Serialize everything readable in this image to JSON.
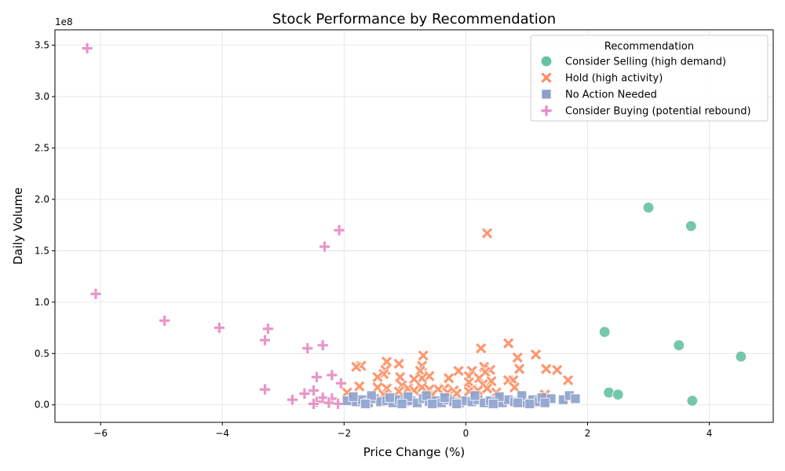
{
  "chart_data": {
    "type": "scatter",
    "title": "Stock Performance by Recommendation",
    "xlabel": "Price Change (%)",
    "ylabel": "Daily Volume",
    "y_offset_label": "1e8",
    "xlim": [
      -6.75,
      5.05
    ],
    "ylim": [
      -0.17,
      3.65
    ],
    "x_ticks": [
      -6,
      -4,
      -2,
      0,
      2,
      4
    ],
    "x_tick_labels": [
      "−6",
      "−4",
      "−2",
      "0",
      "2",
      "4"
    ],
    "y_ticks": [
      0.0,
      0.5,
      1.0,
      1.5,
      2.0,
      2.5,
      3.0,
      3.5
    ],
    "y_tick_labels": [
      "0.0",
      "0.5",
      "1.0",
      "1.5",
      "2.0",
      "2.5",
      "3.0",
      "3.5"
    ],
    "grid": true,
    "legend": {
      "title": "Recommendation",
      "placement": "upper right"
    },
    "series": [
      {
        "name": "Consider Selling (high demand)",
        "marker": "circle",
        "color": "#66c2a5",
        "points": [
          [
            3.0,
            1.92
          ],
          [
            3.7,
            1.74
          ],
          [
            2.28,
            0.71
          ],
          [
            3.5,
            0.58
          ],
          [
            4.52,
            0.47
          ],
          [
            2.35,
            0.12
          ],
          [
            2.5,
            0.1
          ],
          [
            3.72,
            0.04
          ]
        ]
      },
      {
        "name": "Hold (high activity)",
        "marker": "x",
        "color": "#fc8d62",
        "points": [
          [
            0.35,
            1.67
          ],
          [
            0.7,
            0.6
          ],
          [
            0.25,
            0.55
          ],
          [
            1.15,
            0.49
          ],
          [
            -0.7,
            0.48
          ],
          [
            0.85,
            0.46
          ],
          [
            -1.3,
            0.42
          ],
          [
            -1.1,
            0.4
          ],
          [
            -0.72,
            0.38
          ],
          [
            -1.72,
            0.38
          ],
          [
            -1.8,
            0.37
          ],
          [
            0.3,
            0.37
          ],
          [
            0.88,
            0.35
          ],
          [
            1.32,
            0.35
          ],
          [
            1.5,
            0.34
          ],
          [
            -1.32,
            0.34
          ],
          [
            -0.75,
            0.33
          ],
          [
            0.4,
            0.34
          ],
          [
            0.1,
            0.33
          ],
          [
            -0.12,
            0.33
          ],
          [
            0.32,
            0.32
          ],
          [
            -1.35,
            0.3
          ],
          [
            0.05,
            0.28
          ],
          [
            -0.6,
            0.28
          ],
          [
            -1.45,
            0.27
          ],
          [
            -1.08,
            0.27
          ],
          [
            -0.72,
            0.26
          ],
          [
            -0.28,
            0.26
          ],
          [
            0.22,
            0.26
          ],
          [
            -0.85,
            0.25
          ],
          [
            0.7,
            0.24
          ],
          [
            1.68,
            0.24
          ],
          [
            0.78,
            0.24
          ],
          [
            0.42,
            0.23
          ],
          [
            0.05,
            0.22
          ],
          [
            0.28,
            0.2
          ],
          [
            -1.05,
            0.19
          ],
          [
            -1.75,
            0.18
          ],
          [
            -0.72,
            0.17
          ],
          [
            -1.45,
            0.17
          ],
          [
            0.8,
            0.17
          ],
          [
            -0.95,
            0.16
          ],
          [
            -0.35,
            0.16
          ],
          [
            0.35,
            0.16
          ],
          [
            -1.3,
            0.16
          ],
          [
            -0.45,
            0.15
          ],
          [
            -0.6,
            0.15
          ],
          [
            0.1,
            0.15
          ],
          [
            -0.2,
            0.14
          ],
          [
            -0.85,
            0.14
          ],
          [
            0.05,
            0.13
          ],
          [
            -0.3,
            0.12
          ],
          [
            -1.95,
            0.12
          ],
          [
            1.3,
            0.1
          ],
          [
            -0.55,
            0.1
          ],
          [
            -1.35,
            0.1
          ],
          [
            0.5,
            0.12
          ],
          [
            -1.1,
            0.13
          ],
          [
            -0.15,
            0.11
          ],
          [
            0.2,
            0.14
          ]
        ]
      },
      {
        "name": "No Action Needed",
        "marker": "square",
        "color": "#8da0cb",
        "points": [
          [
            -1.95,
            0.04
          ],
          [
            -1.8,
            0.03
          ],
          [
            -1.7,
            0.05
          ],
          [
            -1.6,
            0.02
          ],
          [
            -1.5,
            0.06
          ],
          [
            -1.4,
            0.03
          ],
          [
            -1.3,
            0.04
          ],
          [
            -1.2,
            0.02
          ],
          [
            -1.1,
            0.05
          ],
          [
            -1.0,
            0.03
          ],
          [
            -0.9,
            0.04
          ],
          [
            -0.8,
            0.02
          ],
          [
            -0.7,
            0.06
          ],
          [
            -0.6,
            0.03
          ],
          [
            -0.5,
            0.04
          ],
          [
            -0.4,
            0.02
          ],
          [
            -0.3,
            0.05
          ],
          [
            -0.2,
            0.03
          ],
          [
            -0.1,
            0.02
          ],
          [
            0.0,
            0.04
          ],
          [
            0.1,
            0.03
          ],
          [
            0.2,
            0.05
          ],
          [
            0.3,
            0.02
          ],
          [
            0.4,
            0.04
          ],
          [
            0.5,
            0.03
          ],
          [
            0.6,
            0.02
          ],
          [
            0.7,
            0.05
          ],
          [
            0.8,
            0.03
          ],
          [
            0.9,
            0.04
          ],
          [
            1.0,
            0.02
          ],
          [
            1.1,
            0.05
          ],
          [
            1.2,
            0.03
          ],
          [
            1.3,
            0.04
          ],
          [
            1.4,
            0.06
          ],
          [
            1.6,
            0.05
          ],
          [
            1.7,
            0.09
          ],
          [
            1.8,
            0.06
          ],
          [
            -1.85,
            0.08
          ],
          [
            -1.55,
            0.09
          ],
          [
            -1.25,
            0.07
          ],
          [
            -0.95,
            0.08
          ],
          [
            -0.65,
            0.09
          ],
          [
            -0.35,
            0.07
          ],
          [
            0.15,
            0.09
          ],
          [
            0.55,
            0.08
          ],
          [
            0.92,
            0.09
          ],
          [
            1.25,
            0.07
          ],
          [
            -1.65,
            0.01
          ],
          [
            -0.15,
            0.01
          ],
          [
            0.45,
            0.01
          ],
          [
            1.05,
            0.01
          ],
          [
            -1.05,
            0.01
          ],
          [
            0.85,
            0.02
          ],
          [
            1.3,
            0.02
          ],
          [
            -0.55,
            0.01
          ]
        ]
      },
      {
        "name": "Consider Buying (potential rebound)",
        "marker": "plus",
        "color": "#e78ac3",
        "points": [
          [
            -6.22,
            3.47
          ],
          [
            -2.08,
            1.7
          ],
          [
            -2.32,
            1.54
          ],
          [
            -6.08,
            1.08
          ],
          [
            -4.95,
            0.82
          ],
          [
            -4.05,
            0.75
          ],
          [
            -3.25,
            0.74
          ],
          [
            -3.3,
            0.63
          ],
          [
            -2.35,
            0.58
          ],
          [
            -2.6,
            0.55
          ],
          [
            -2.2,
            0.29
          ],
          [
            -2.45,
            0.27
          ],
          [
            -2.05,
            0.21
          ],
          [
            -3.3,
            0.15
          ],
          [
            -2.5,
            0.14
          ],
          [
            -2.65,
            0.11
          ],
          [
            -2.85,
            0.05
          ],
          [
            -2.35,
            0.07
          ],
          [
            -2.2,
            0.06
          ],
          [
            -2.45,
            0.03
          ],
          [
            -2.5,
            0.01
          ],
          [
            -2.1,
            0.01
          ],
          [
            -2.25,
            0.02
          ]
        ]
      }
    ]
  }
}
